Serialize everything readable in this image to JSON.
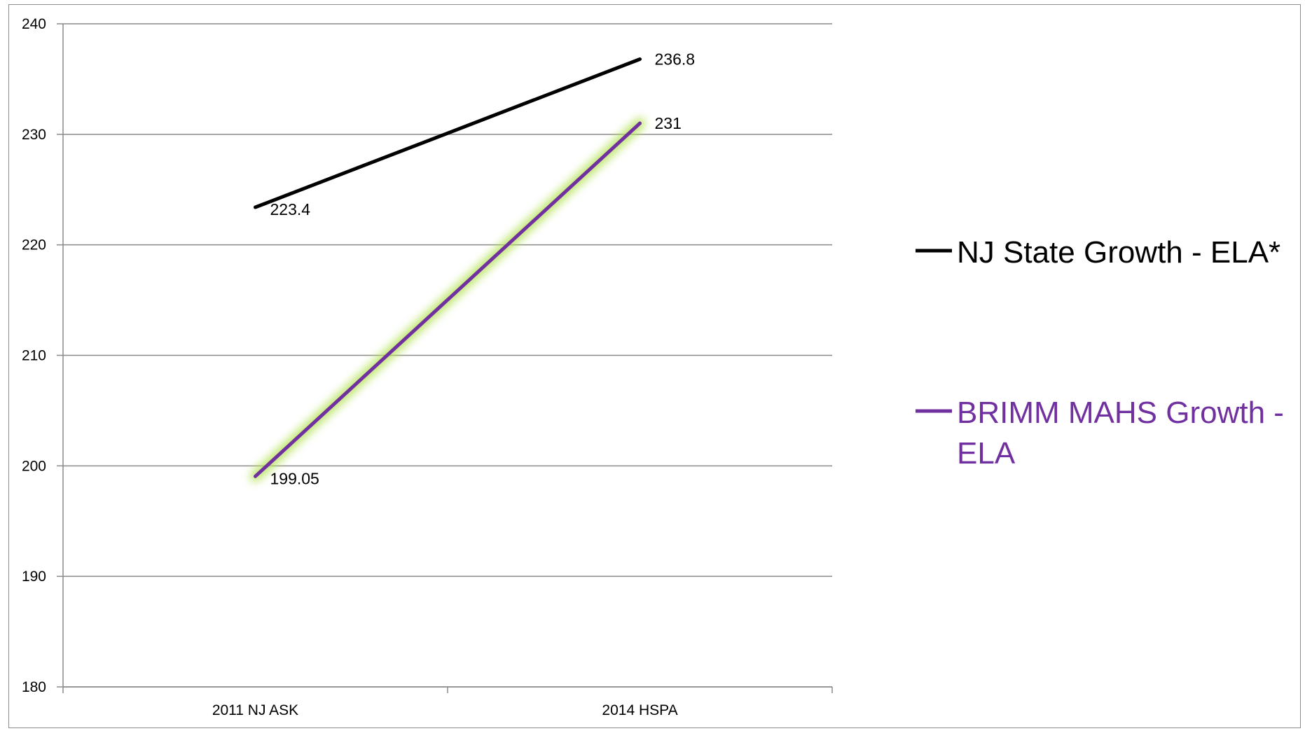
{
  "chart_data": {
    "type": "line",
    "categories": [
      "2011 NJ ASK",
      "2014 HSPA"
    ],
    "ylim": [
      180,
      240
    ],
    "yticks": [
      180,
      190,
      200,
      210,
      220,
      230,
      240
    ],
    "grid": true,
    "legend_position": "right",
    "series": [
      {
        "name": "NJ State Growth - ELA*",
        "values": [
          223.4,
          236.8
        ],
        "labels": [
          "223.4",
          "236.8"
        ],
        "color": "#000000",
        "glow": false
      },
      {
        "name": "BRIMM MAHS Growth - ELA",
        "legend_lines": [
          "BRIMM MAHS Growth -",
          "ELA"
        ],
        "values": [
          199.05,
          231
        ],
        "labels": [
          "199.05",
          "231"
        ],
        "color": "#7030a0",
        "glow": true,
        "glow_color": "#b6e35a"
      }
    ]
  }
}
